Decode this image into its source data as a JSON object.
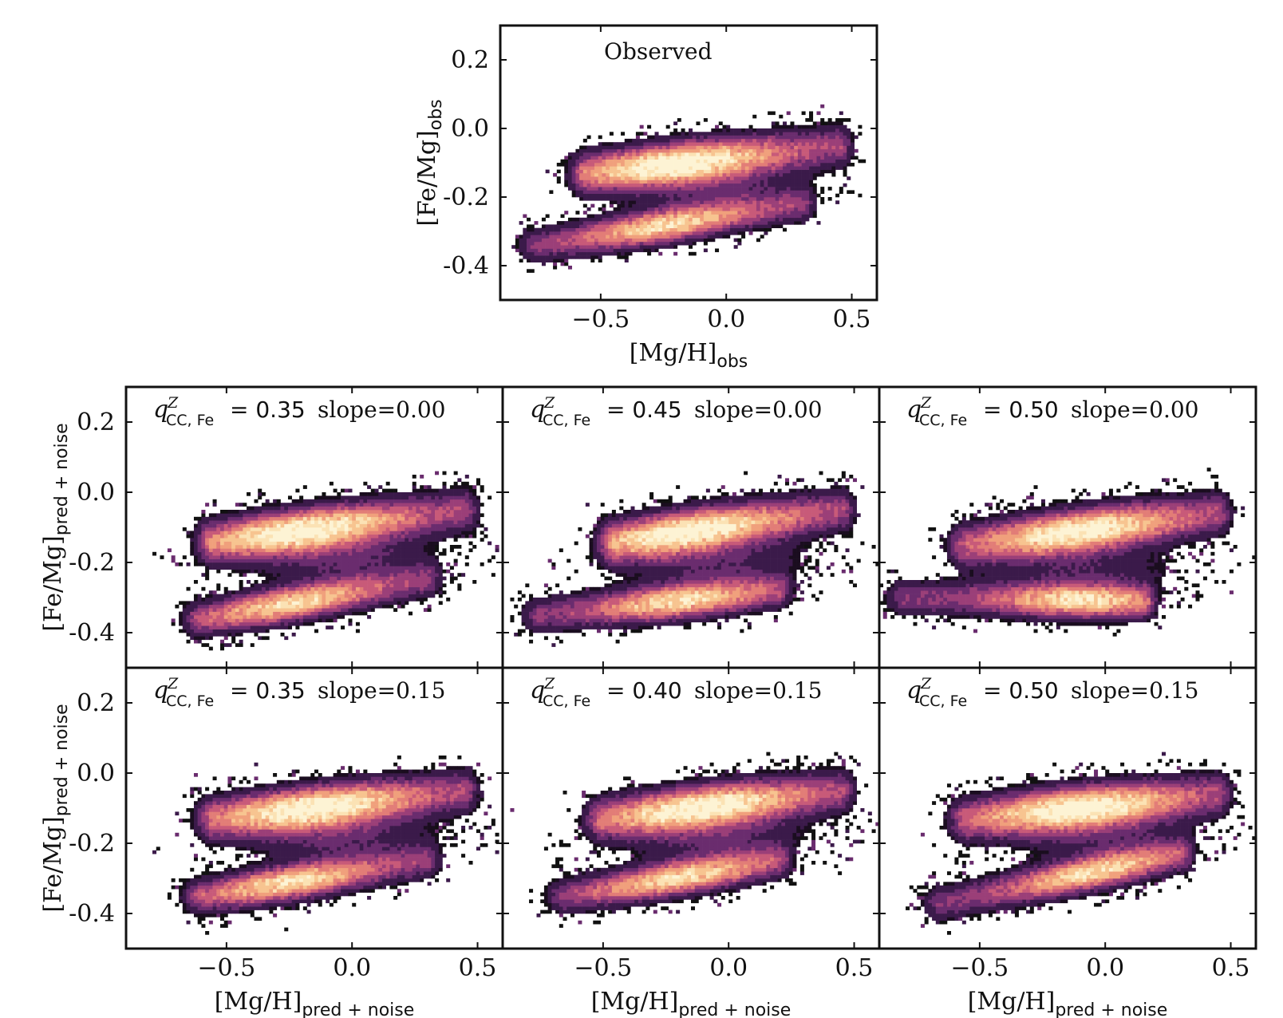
{
  "figure": {
    "colors": {
      "axis": "#111111",
      "colormap": [
        "#1a0d1f",
        "#3b1a4a",
        "#6a2c6e",
        "#9b3f78",
        "#c85a79",
        "#e27d77",
        "#f0a07c",
        "#f7c490",
        "#fbe2b4",
        "#fdf3d4"
      ]
    }
  },
  "chart_data": [
    {
      "id": "observed",
      "type": "heatmap",
      "annotation": "Observed",
      "xlabel_main": "[Mg/H]",
      "xlabel_sub": "obs",
      "ylabel_main": "[Fe/Mg]",
      "ylabel_sub": "obs",
      "xlim": [
        -0.9,
        0.6
      ],
      "ylim": [
        -0.5,
        0.3
      ],
      "xticks": [
        {
          "v": -0.5,
          "label": "−0.5"
        },
        {
          "v": 0.0,
          "label": "0.0"
        },
        {
          "v": 0.5,
          "label": "0.5"
        }
      ],
      "yticks": [
        {
          "v": 0.2,
          "label": "0.2"
        },
        {
          "v": 0.0,
          "label": "0.0"
        },
        {
          "v": -0.2,
          "label": "-0.2"
        },
        {
          "v": -0.4,
          "label": "-0.4"
        }
      ],
      "density_model": {
        "high_alpha_sequence": {
          "x_range": [
            -0.55,
            0.45
          ],
          "fe_mg_at_x_min": -0.13,
          "fe_mg_at_x_max": -0.05,
          "peak_x": -0.2
        },
        "low_alpha_sequence": {
          "x_range": [
            -0.75,
            0.3
          ],
          "fe_mg_at_x_min": -0.34,
          "fe_mg_at_x_max": -0.22,
          "peak_x": -0.25
        },
        "bridge_strength": 0.5
      }
    },
    {
      "id": "q035-s000",
      "type": "heatmap",
      "label_main": "q",
      "label_sup": "Z",
      "label_sub": "CC, Fe",
      "q_text": "= 0.35",
      "slope_text": "slope=0.00",
      "xlim": [
        -0.9,
        0.6
      ],
      "ylim": [
        -0.5,
        0.3
      ],
      "yticks": [
        {
          "v": 0.2,
          "label": "0.2"
        },
        {
          "v": 0.0,
          "label": "0.0"
        },
        {
          "v": -0.2,
          "label": "-0.2"
        },
        {
          "v": -0.4,
          "label": "-0.4"
        }
      ],
      "ylabel_main": "[Fe/Mg]",
      "ylabel_sub": "pred + noise",
      "density_model": {
        "high_alpha_sequence": {
          "x_range": [
            -0.55,
            0.45
          ],
          "fe_mg_at_x_min": -0.14,
          "fe_mg_at_x_max": -0.05,
          "peak_x": -0.2
        },
        "low_alpha_sequence": {
          "x_range": [
            -0.6,
            0.3
          ],
          "fe_mg_at_x_min": -0.36,
          "fe_mg_at_x_max": -0.25,
          "peak_x": -0.25
        },
        "bridge_strength": 0.6
      }
    },
    {
      "id": "q045-s000",
      "type": "heatmap",
      "label_main": "q",
      "label_sup": "Z",
      "label_sub": "CC, Fe",
      "q_text": "= 0.45",
      "slope_text": "slope=0.00",
      "xlim": [
        -0.9,
        0.6
      ],
      "ylim": [
        -0.5,
        0.3
      ],
      "density_model": {
        "high_alpha_sequence": {
          "x_range": [
            -0.45,
            0.45
          ],
          "fe_mg_at_x_min": -0.14,
          "fe_mg_at_x_max": -0.05,
          "peak_x": -0.15
        },
        "low_alpha_sequence": {
          "x_range": [
            -0.75,
            0.2
          ],
          "fe_mg_at_x_min": -0.35,
          "fe_mg_at_x_max": -0.28,
          "peak_x": -0.2
        },
        "bridge_strength": 0.55
      }
    },
    {
      "id": "q050-s000",
      "type": "heatmap",
      "label_main": "q",
      "label_sup": "Z",
      "label_sub": "CC, Fe",
      "q_text": "= 0.50",
      "slope_text": "slope=0.00",
      "xlim": [
        -0.9,
        0.6
      ],
      "ylim": [
        -0.5,
        0.3
      ],
      "density_model": {
        "high_alpha_sequence": {
          "x_range": [
            -0.55,
            0.45
          ],
          "fe_mg_at_x_min": -0.15,
          "fe_mg_at_x_max": -0.06,
          "peak_x": -0.1
        },
        "low_alpha_sequence": {
          "x_range": [
            -0.8,
            0.15
          ],
          "fe_mg_at_x_min": -0.3,
          "fe_mg_at_x_max": -0.31,
          "peak_x": -0.1
        },
        "bridge_strength": 0.45
      }
    },
    {
      "id": "q035-s015",
      "type": "heatmap",
      "label_main": "q",
      "label_sup": "Z",
      "label_sub": "CC, Fe",
      "q_text": "= 0.35",
      "slope_text": "slope=0.15",
      "xlim": [
        -0.9,
        0.6
      ],
      "ylim": [
        -0.5,
        0.3
      ],
      "xticks": [
        {
          "v": -0.5,
          "label": "−0.5"
        },
        {
          "v": 0.0,
          "label": "0.0"
        },
        {
          "v": 0.5,
          "label": "0.5"
        }
      ],
      "yticks": [
        {
          "v": 0.2,
          "label": "0.2"
        },
        {
          "v": 0.0,
          "label": "0.0"
        },
        {
          "v": -0.2,
          "label": "-0.2"
        },
        {
          "v": -0.4,
          "label": "-0.4"
        }
      ],
      "xlabel_main": "[Mg/H]",
      "xlabel_sub": "pred + noise",
      "ylabel_main": "[Fe/Mg]",
      "ylabel_sub": "pred + noise",
      "density_model": {
        "high_alpha_sequence": {
          "x_range": [
            -0.55,
            0.45
          ],
          "fe_mg_at_x_min": -0.13,
          "fe_mg_at_x_max": -0.05,
          "peak_x": -0.15
        },
        "low_alpha_sequence": {
          "x_range": [
            -0.6,
            0.3
          ],
          "fe_mg_at_x_min": -0.35,
          "fe_mg_at_x_max": -0.25,
          "peak_x": -0.25
        },
        "bridge_strength": 0.6
      }
    },
    {
      "id": "q040-s015",
      "type": "heatmap",
      "label_main": "q",
      "label_sup": "Z",
      "label_sub": "CC, Fe",
      "q_text": "= 0.40",
      "slope_text": "slope=0.15",
      "xlim": [
        -0.9,
        0.6
      ],
      "ylim": [
        -0.5,
        0.3
      ],
      "xticks": [
        {
          "v": -0.5,
          "label": "−0.5"
        },
        {
          "v": 0.0,
          "label": "0.0"
        },
        {
          "v": 0.5,
          "label": "0.5"
        }
      ],
      "xlabel_main": "[Mg/H]",
      "xlabel_sub": "pred + noise",
      "density_model": {
        "high_alpha_sequence": {
          "x_range": [
            -0.5,
            0.45
          ],
          "fe_mg_at_x_min": -0.13,
          "fe_mg_at_x_max": -0.05,
          "peak_x": -0.1
        },
        "low_alpha_sequence": {
          "x_range": [
            -0.65,
            0.2
          ],
          "fe_mg_at_x_min": -0.35,
          "fe_mg_at_x_max": -0.25,
          "peak_x": -0.2
        },
        "bridge_strength": 0.55
      }
    },
    {
      "id": "q050-s015",
      "type": "heatmap",
      "label_main": "q",
      "label_sup": "Z",
      "label_sub": "CC, Fe",
      "q_text": "= 0.50",
      "slope_text": "slope=0.15",
      "xlim": [
        -0.9,
        0.6
      ],
      "ylim": [
        -0.5,
        0.3
      ],
      "xticks": [
        {
          "v": -0.5,
          "label": "−0.5"
        },
        {
          "v": 0.0,
          "label": "0.0"
        },
        {
          "v": 0.5,
          "label": "0.5"
        }
      ],
      "xlabel_main": "[Mg/H]",
      "xlabel_sub": "pred + noise",
      "density_model": {
        "high_alpha_sequence": {
          "x_range": [
            -0.55,
            0.45
          ],
          "fe_mg_at_x_min": -0.13,
          "fe_mg_at_x_max": -0.06,
          "peak_x": -0.1
        },
        "low_alpha_sequence": {
          "x_range": [
            -0.65,
            0.3
          ],
          "fe_mg_at_x_min": -0.37,
          "fe_mg_at_x_max": -0.23,
          "peak_x": -0.05
        },
        "bridge_strength": 0.5
      }
    }
  ]
}
